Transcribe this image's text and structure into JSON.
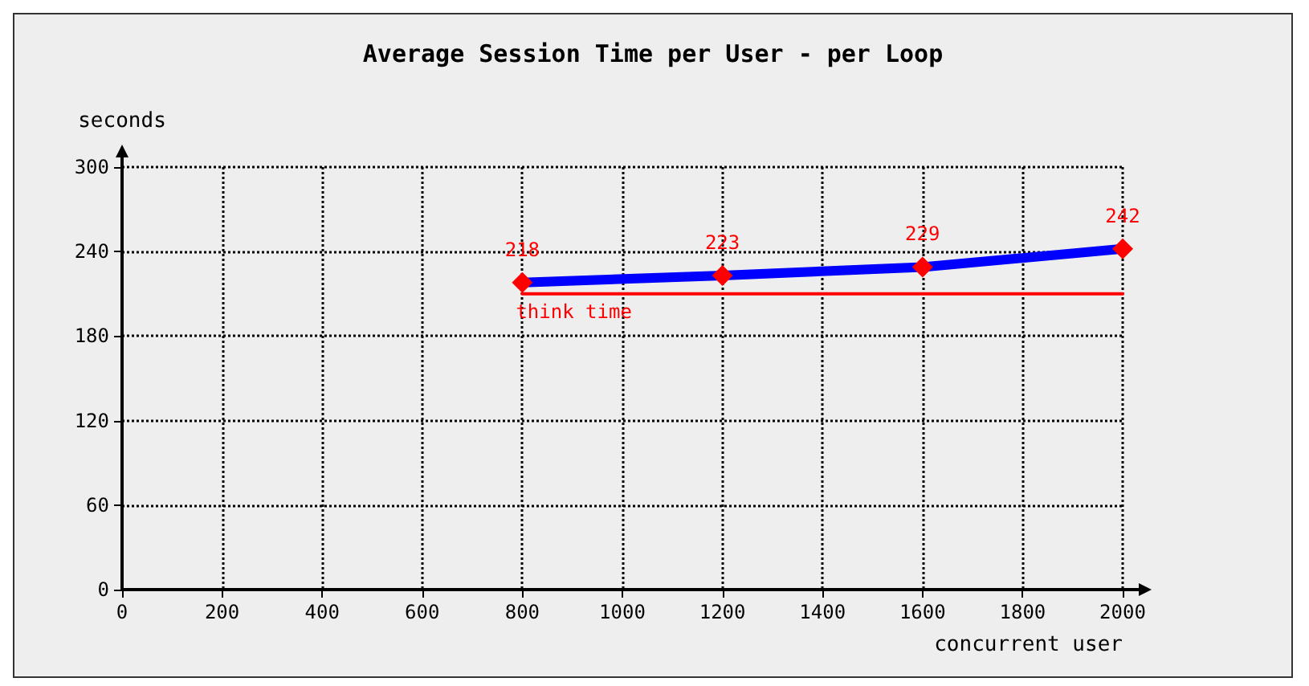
{
  "chart_data": {
    "type": "line",
    "title": "Average Session Time per User - per Loop",
    "xlabel": "concurrent user",
    "ylabel": "seconds",
    "series": [
      {
        "color": "#0000ff",
        "colors": [
          "#ff0000",
          "#ff0000",
          "#ff0000",
          "#ff0000"
        ],
        "x": [
          800,
          1200,
          1600,
          2000
        ],
        "values": [
          218,
          223,
          229,
          242
        ],
        "marker": "diamond",
        "data_labels": true
      },
      {
        "name": "think time",
        "color": "#ff0000",
        "x": [
          800,
          2000
        ],
        "values": [
          210,
          210
        ],
        "marker": "none"
      }
    ],
    "xlim": [
      0,
      2000
    ],
    "xticks": [
      0,
      200,
      400,
      600,
      800,
      1000,
      1200,
      1400,
      1600,
      1800,
      2000
    ],
    "ylim": [
      0,
      300
    ],
    "yticks": [
      0,
      60,
      120,
      180,
      240,
      300
    ],
    "grid": true,
    "line_style": "solid"
  }
}
